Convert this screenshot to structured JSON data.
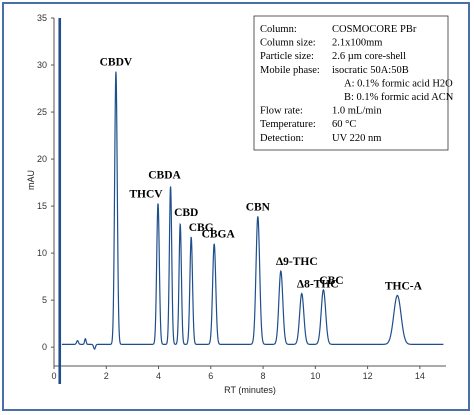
{
  "chart_data": {
    "type": "line",
    "title": "",
    "xlabel": "RT (minutes)",
    "ylabel": "mAU",
    "xlim": [
      0,
      15
    ],
    "ylim": [
      -2,
      35
    ],
    "x_ticks": [
      "0",
      "2",
      "4",
      "6",
      "8",
      "10",
      "12",
      "14"
    ],
    "y_ticks": [
      "0",
      "5",
      "10",
      "15",
      "20",
      "25",
      "30",
      "35"
    ],
    "grid": false,
    "series": [
      {
        "color": "#1f4e8c",
        "baseline": 0.3,
        "injection_spike_rt": 0.22,
        "peaks": [
          {
            "name": "CBDV",
            "rt": 2.37,
            "height": 29.0,
            "width": 0.05
          },
          {
            "name": "THCV",
            "rt": 3.98,
            "height": 15.0,
            "width": 0.05
          },
          {
            "name": "CBDA",
            "rt": 4.46,
            "height": 16.8,
            "width": 0.045
          },
          {
            "name": "CBD",
            "rt": 4.83,
            "height": 12.8,
            "width": 0.045
          },
          {
            "name": "CBG",
            "rt": 5.25,
            "height": 11.4,
            "width": 0.05
          },
          {
            "name": "CBGA",
            "rt": 6.13,
            "height": 10.7,
            "width": 0.06
          },
          {
            "name": "CBN",
            "rt": 7.8,
            "height": 13.6,
            "width": 0.07
          },
          {
            "name": "Δ9-THC",
            "rt": 8.68,
            "height": 7.8,
            "width": 0.075
          },
          {
            "name": "Δ8-THC",
            "rt": 9.48,
            "height": 5.4,
            "width": 0.08
          },
          {
            "name": "CBC",
            "rt": 10.31,
            "height": 5.8,
            "width": 0.085
          },
          {
            "name": "THC-A",
            "rt": 13.14,
            "height": 5.2,
            "width": 0.14
          }
        ]
      }
    ]
  },
  "conditions": [
    {
      "label": "Column:",
      "value": "COSMOCORE PBr"
    },
    {
      "label": "Column size:",
      "value": "2.1x100mm"
    },
    {
      "label": "Particle size:",
      "value": "2.6 µm core-shell"
    },
    {
      "label": "Mobile phase:",
      "value": "isocratic 50A:50B"
    },
    {
      "label": "",
      "value": "A: 0.1% formic acid H2O"
    },
    {
      "label": "",
      "value": "B: 0.1% formic acid ACN"
    },
    {
      "label": "Flow rate:",
      "value": "1.0 mL/min"
    },
    {
      "label": "Temperature:",
      "value": "60 °C"
    },
    {
      "label": "Detection:",
      "value": "UV 220 nm"
    }
  ]
}
